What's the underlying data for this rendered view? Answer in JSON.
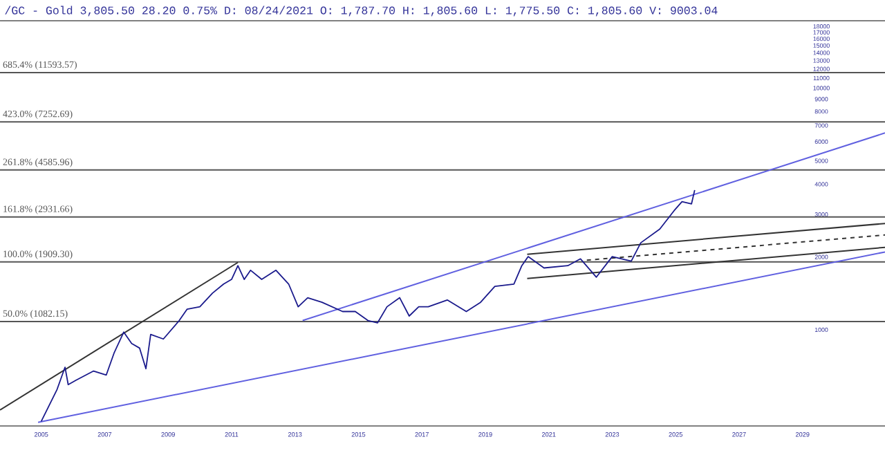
{
  "chart_data": {
    "type": "line",
    "title": "/GC - Gold 3,805.50 28.20 0.75% D: 08/24/2021 O: 1,787.70 H: 1,805.60 L: 1,775.50 C: 1,805.60 V: 9003.04",
    "xlim": [
      2003.7,
      2031.6
    ],
    "xticks": [
      2005,
      2007,
      2009,
      2011,
      2013,
      2015,
      2017,
      2019,
      2021,
      2023,
      2025,
      2027,
      2029
    ],
    "ylim": [
      400,
      19000
    ],
    "yticks": [
      1000,
      2000,
      3000,
      4000,
      5000,
      6000,
      7000,
      8000,
      9000,
      10000,
      11000,
      12000,
      13000,
      14000,
      15000,
      16000,
      17000,
      18000
    ],
    "log": "y",
    "series": [
      {
        "color": "#1a1a8c",
        "x": [
          2005.0,
          2005.2,
          2005.5,
          2005.75,
          2005.85,
          2006.1,
          2006.65,
          2007.05,
          2007.3,
          2007.6,
          2007.85,
          2008.1,
          2008.3,
          2008.45,
          2008.85,
          2009.35,
          2009.6,
          2010.0,
          2010.4,
          2010.75,
          2011.0,
          2011.2,
          2011.4,
          2011.6,
          2011.95,
          2012.4,
          2012.8,
          2013.1,
          2013.4,
          2013.85,
          2014.5,
          2014.9,
          2015.3,
          2015.6,
          2015.9,
          2016.3,
          2016.6,
          2016.9,
          2017.2,
          2017.8,
          2018.4,
          2018.85,
          2019.3,
          2019.9,
          2020.15,
          2020.35,
          2020.85,
          2021.6,
          2022.0,
          2022.5,
          2023.0,
          2023.6,
          2023.9,
          2024.5,
          2024.95,
          2025.2,
          2025.5,
          2025.6
        ],
        "values": [
          418,
          472,
          567,
          700,
          593,
          619,
          675,
          650,
          804,
          978,
          877,
          840,
          690,
          957,
          916,
          1092,
          1217,
          1245,
          1418,
          1546,
          1616,
          1842,
          1616,
          1763,
          1616,
          1763,
          1546,
          1245,
          1357,
          1299,
          1190,
          1190,
          1092,
          1068,
          1245,
          1357,
          1140,
          1245,
          1245,
          1328,
          1190,
          1299,
          1513,
          1546,
          1842,
          2008,
          1802,
          1842,
          1966,
          1651,
          2008,
          1923,
          2290,
          2610,
          3110,
          3390,
          3320,
          3784
        ]
      },
      {
        "type": "line",
        "color": "#333333",
        "x": [
          2003.7,
          2011.2
        ],
        "values": [
          466,
          1900
        ]
      },
      {
        "type": "line",
        "color": "#6060e0",
        "x": [
          2004.9,
          2031.6
        ],
        "values": [
          414,
          2099
        ]
      },
      {
        "type": "line",
        "color": "#6060e0",
        "x": [
          2013.24,
          2031.6
        ],
        "values": [
          1092,
          6520
        ]
      },
      {
        "type": "line",
        "color": "#333333",
        "x": [
          2020.32,
          2031.6
        ],
        "values": [
          2054,
          2753
        ]
      },
      {
        "type": "line",
        "color": "#333333",
        "x": [
          2020.32,
          2031.6
        ],
        "values": [
          1630,
          2193
        ]
      },
      {
        "type": "line",
        "color": "#333333",
        "line_style": "dashed",
        "x": [
          2022.2,
          2031.6
        ],
        "values": [
          1941,
          2467
        ]
      }
    ],
    "ref_lines": [
      {
        "axis": "y",
        "value": 1082.15,
        "label": "50.0% (1082.15)",
        "color": "#555555"
      },
      {
        "axis": "y",
        "value": 1909.3,
        "label": "100.0% (1909.30)",
        "color": "#555555"
      },
      {
        "axis": "y",
        "value": 2931.66,
        "label": "161.8% (2931.66)",
        "color": "#555555"
      },
      {
        "axis": "y",
        "value": 4585.96,
        "label": "261.8% (4585.96)",
        "color": "#555555"
      },
      {
        "axis": "y",
        "value": 7252.69,
        "label": "423.0% (7252.69)",
        "color": "#555555"
      },
      {
        "axis": "y",
        "value": 11593.57,
        "label": "685.4% (11593.57)",
        "color": "#555555"
      }
    ]
  }
}
